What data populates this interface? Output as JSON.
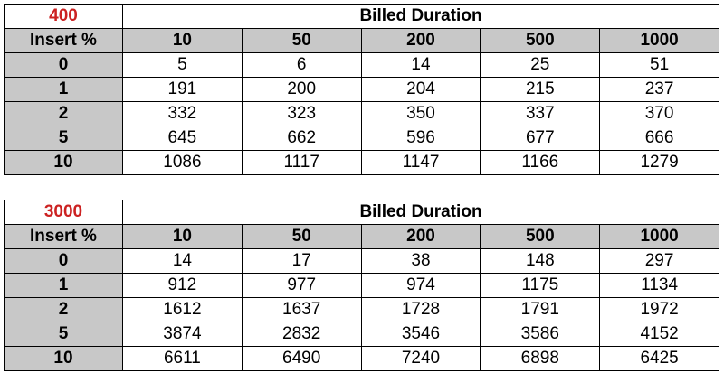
{
  "colors": {
    "accent": "#cc2222",
    "header_fill": "#c8c8c8"
  },
  "tables": [
    {
      "label": "400",
      "title": "Billed Duration",
      "row_header": "Insert %",
      "columns": [
        "10",
        "50",
        "200",
        "500",
        "1000"
      ],
      "rows": [
        {
          "key": "0",
          "values": [
            "5",
            "6",
            "14",
            "25",
            "51"
          ]
        },
        {
          "key": "1",
          "values": [
            "191",
            "200",
            "204",
            "215",
            "237"
          ]
        },
        {
          "key": "2",
          "values": [
            "332",
            "323",
            "350",
            "337",
            "370"
          ]
        },
        {
          "key": "5",
          "values": [
            "645",
            "662",
            "596",
            "677",
            "666"
          ]
        },
        {
          "key": "10",
          "values": [
            "1086",
            "1117",
            "1147",
            "1166",
            "1279"
          ]
        }
      ]
    },
    {
      "label": "3000",
      "title": "Billed Duration",
      "row_header": "Insert %",
      "columns": [
        "10",
        "50",
        "200",
        "500",
        "1000"
      ],
      "rows": [
        {
          "key": "0",
          "values": [
            "14",
            "17",
            "38",
            "148",
            "297"
          ]
        },
        {
          "key": "1",
          "values": [
            "912",
            "977",
            "974",
            "1175",
            "1134"
          ]
        },
        {
          "key": "2",
          "values": [
            "1612",
            "1637",
            "1728",
            "1791",
            "1972"
          ]
        },
        {
          "key": "5",
          "values": [
            "3874",
            "2832",
            "3546",
            "3586",
            "4152"
          ]
        },
        {
          "key": "10",
          "values": [
            "6611",
            "6490",
            "7240",
            "6898",
            "6425"
          ]
        }
      ]
    }
  ]
}
